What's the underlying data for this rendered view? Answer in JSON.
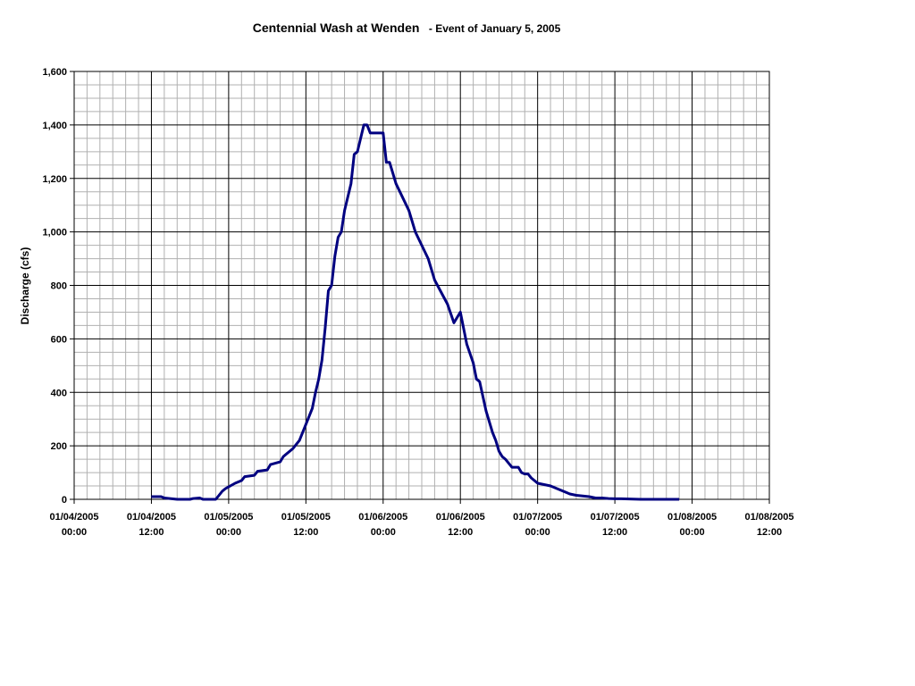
{
  "chart_data": {
    "type": "line",
    "title": "Centennial Wash at Wenden",
    "subtitle": "- Event of January 5, 2005",
    "xlabel": "",
    "ylabel": "Discharge (cfs)",
    "ylim": [
      0,
      1600
    ],
    "y_ticks": [
      "0",
      "200",
      "400",
      "600",
      "800",
      "1,000",
      "1,200",
      "1,400",
      "1,600"
    ],
    "x_tick_labels": [
      [
        "01/04/2005",
        "00:00"
      ],
      [
        "01/04/2005",
        "12:00"
      ],
      [
        "01/05/2005",
        "00:00"
      ],
      [
        "01/05/2005",
        "12:00"
      ],
      [
        "01/06/2005",
        "00:00"
      ],
      [
        "01/06/2005",
        "12:00"
      ],
      [
        "01/07/2005",
        "00:00"
      ],
      [
        "01/07/2005",
        "12:00"
      ],
      [
        "01/08/2005",
        "00:00"
      ],
      [
        "01/08/2005",
        "12:00"
      ]
    ],
    "x_range_hours": [
      0,
      108
    ],
    "grid": true,
    "series": [
      {
        "color": "#000080",
        "x_hours": [
          12,
          13.5,
          14,
          16,
          18,
          18.5,
          19.5,
          20,
          22,
          23,
          23.5,
          25,
          26,
          26.5,
          28,
          28.5,
          30,
          30.5,
          32,
          32.5,
          34,
          35,
          36,
          37,
          37.5,
          38,
          38.5,
          39,
          39.5,
          40,
          40.5,
          41,
          41.5,
          42,
          43,
          43.5,
          44,
          45,
          45.5,
          46,
          46.5,
          47,
          48,
          48.5,
          49,
          50,
          52,
          53,
          55,
          56,
          58,
          59,
          60,
          61,
          62,
          62.5,
          63,
          64,
          65,
          65.5,
          66,
          66.5,
          67,
          68,
          69,
          69.5,
          70,
          70.5,
          71,
          72,
          74,
          75,
          77,
          78,
          80,
          81,
          82,
          83,
          84,
          85,
          88,
          89,
          93,
          94
        ],
        "values": [
          10,
          10,
          5,
          0,
          0,
          3,
          5,
          0,
          0,
          30,
          40,
          60,
          70,
          85,
          90,
          105,
          110,
          130,
          140,
          160,
          190,
          220,
          280,
          340,
          400,
          450,
          520,
          640,
          780,
          800,
          910,
          980,
          1000,
          1080,
          1180,
          1290,
          1300,
          1400,
          1400,
          1370,
          1370,
          1370,
          1370,
          1260,
          1260,
          1180,
          1080,
          1000,
          900,
          820,
          730,
          660,
          700,
          580,
          510,
          450,
          440,
          330,
          250,
          220,
          180,
          160,
          150,
          120,
          120,
          100,
          95,
          95,
          80,
          60,
          50,
          40,
          20,
          15,
          10,
          5,
          5,
          3,
          2,
          2,
          0,
          0,
          0,
          0
        ]
      }
    ]
  }
}
